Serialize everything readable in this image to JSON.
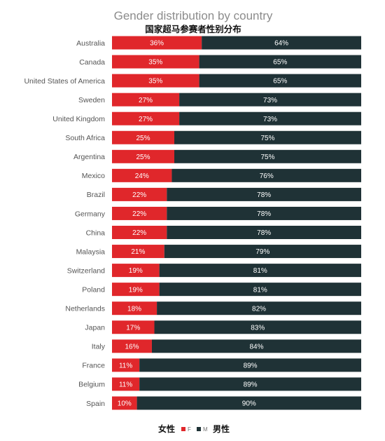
{
  "chart_data": {
    "type": "bar",
    "stacked": true,
    "orientation": "horizontal",
    "title": "Gender distribution by country",
    "subtitle": "国家超马参赛者性别分布",
    "categories": [
      "Australia",
      "Canada",
      "United States of America",
      "Sweden",
      "United Kingdom",
      "South Africa",
      "Argentina",
      "Mexico",
      "Brazil",
      "Germany",
      "China",
      "Malaysia",
      "Switzerland",
      "Poland",
      "Netherlands",
      "Japan",
      "Italy",
      "France",
      "Belgium",
      "Spain"
    ],
    "series": [
      {
        "name": "女性",
        "color": "#e0272b",
        "values": [
          36,
          35,
          35,
          27,
          27,
          25,
          25,
          24,
          22,
          22,
          22,
          21,
          19,
          19,
          18,
          17,
          16,
          11,
          11,
          10
        ],
        "labels": [
          "36%",
          "35%",
          "35%",
          "27%",
          "27%",
          "25%",
          "25%",
          "24%",
          "22%",
          "22%",
          "22%",
          "21%",
          "19%",
          "19%",
          "18%",
          "17%",
          "16%",
          "11%",
          "11%",
          "10%"
        ]
      },
      {
        "name": "男性",
        "color": "#1f3236",
        "values": [
          64,
          65,
          65,
          73,
          73,
          75,
          75,
          76,
          78,
          78,
          78,
          79,
          81,
          81,
          82,
          83,
          84,
          89,
          89,
          90
        ],
        "labels": [
          "64%",
          "65%",
          "65%",
          "73%",
          "73%",
          "75%",
          "75%",
          "76%",
          "78%",
          "78%",
          "78%",
          "79%",
          "81%",
          "81%",
          "82%",
          "83%",
          "84%",
          "89%",
          "89%",
          "90%"
        ]
      }
    ],
    "xlim": [
      0,
      100
    ],
    "grid": false,
    "legend": {
      "position": "bottom",
      "left_text": "女性",
      "right_text": "男性",
      "female_marker_text": "F",
      "male_marker_text": "M"
    }
  }
}
